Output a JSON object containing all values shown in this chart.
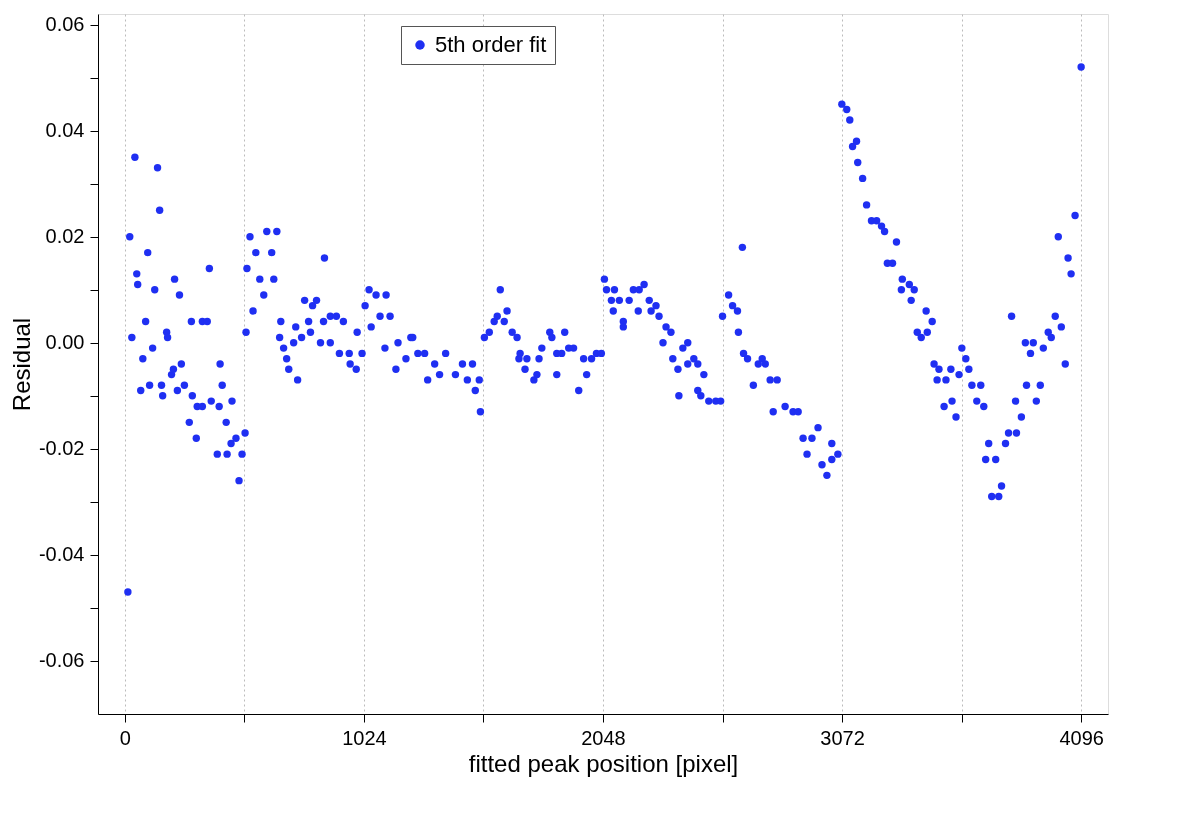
{
  "chart_data": {
    "type": "scatter",
    "xlabel": "fitted peak position [pixel]",
    "ylabel": "Residual",
    "xlim": [
      -115,
      4211
    ],
    "ylim": [
      -0.07,
      0.062
    ],
    "xticks": [
      0,
      {
        "value": 512,
        "label": null
      },
      1024,
      {
        "value": 1536,
        "label": null
      },
      2048,
      {
        "value": 2560,
        "label": null
      },
      3072,
      {
        "value": 3584,
        "label": null
      },
      4096
    ],
    "yticks": [
      -0.06,
      {
        "value": -0.05,
        "label": null
      },
      -0.04,
      {
        "value": -0.03,
        "label": null
      },
      -0.02,
      {
        "value": -0.01,
        "label": null
      },
      {
        "value": 0,
        "label": "0.00"
      },
      {
        "value": 0.01,
        "label": null
      },
      0.02,
      {
        "value": 0.03,
        "label": null
      },
      0.04,
      {
        "value": 0.05,
        "label": null
      },
      0.06
    ],
    "grid": "x",
    "legend": "top",
    "marker": "circle",
    "series": [
      {
        "name": "5th order fit",
        "color": "#1f2ff2",
        "x": [
          13,
          21,
          30,
          43,
          51,
          55,
          68,
          77,
          89,
          98,
          106,
          119,
          128,
          140,
          149,
          157,
          162,
          179,
          183,
          200,
          208,
          213,
          225,
          234,
          242,
          255,
          276,
          285,
          289,
          306,
          310,
          332,
          332,
          353,
          362,
          370,
          396,
          404,
          408,
          417,
          434,
          438,
          455,
          459,
          476,
          489,
          502,
          515,
          519,
          523,
          536,
          549,
          561,
          578,
          595,
          608,
          629,
          638,
          651,
          663,
          668,
          680,
          693,
          702,
          723,
          732,
          740,
          757,
          770,
          787,
          795,
          804,
          821,
          838,
          851,
          855,
          880,
          880,
          906,
          919,
          936,
          961,
          965,
          991,
          995,
          1016,
          1029,
          1046,
          1055,
          1076,
          1093,
          1114,
          1119,
          1136,
          1161,
          1170,
          1204,
          1225,
          1233,
          1255,
          1284,
          1297,
          1327,
          1348,
          1374,
          1416,
          1446,
          1467,
          1489,
          1501,
          1518,
          1523,
          1540,
          1561,
          1582,
          1595,
          1608,
          1625,
          1637,
          1659,
          1680,
          1688,
          1693,
          1714,
          1722,
          1752,
          1765,
          1774,
          1786,
          1820,
          1829,
          1850,
          1850,
          1871,
          1884,
          1901,
          1922,
          1944,
          1965,
          1978,
          1999,
          2020,
          2041,
          2054,
          2063,
          2084,
          2092,
          2097,
          2118,
          2135,
          2135,
          2160,
          2178,
          2199,
          2203,
          2224,
          2246,
          2254,
          2275,
          2288,
          2305,
          2318,
          2339,
          2347,
          2369,
          2373,
          2390,
          2411,
          2411,
          2437,
          2454,
          2454,
          2467,
          2480,
          2501,
          2531,
          2552,
          2560,
          2586,
          2603,
          2624,
          2628,
          2645,
          2650,
          2667,
          2692,
          2713,
          2730,
          2743,
          2764,
          2777,
          2794,
          2828,
          2862,
          2884,
          2905,
          2922,
          2943,
          2969,
          2986,
          3007,
          3028,
          3028,
          3054,
          3071,
          3092,
          3105,
          3117,
          3134,
          3139,
          3160,
          3177,
          3198,
          3220,
          3241,
          3254,
          3266,
          3288,
          3305,
          3326,
          3330,
          3360,
          3368,
          3381,
          3394,
          3411,
          3432,
          3437,
          3458,
          3466,
          3479,
          3487,
          3509,
          3517,
          3538,
          3543,
          3560,
          3573,
          3585,
          3602,
          3615,
          3628,
          3649,
          3666,
          3679,
          3687,
          3700,
          3713,
          3730,
          3743,
          3755,
          3772,
          3785,
          3798,
          3815,
          3819,
          3840,
          3857,
          3862,
          3879,
          3891,
          3904,
          3921,
          3934,
          3955,
          3968,
          3985,
          3998,
          4011,
          4028,
          4040,
          4053,
          4070,
          4096
        ],
        "values": [
          -0.047,
          0.02,
          0.001,
          0.035,
          0.013,
          0.011,
          -0.009,
          -0.003,
          0.004,
          0.017,
          -0.008,
          -0.001,
          0.01,
          0.033,
          0.025,
          -0.008,
          -0.01,
          0.002,
          0.001,
          -0.006,
          -0.005,
          0.012,
          -0.009,
          0.009,
          -0.004,
          -0.008,
          -0.015,
          0.004,
          -0.01,
          -0.018,
          -0.012,
          -0.012,
          0.004,
          0.004,
          0.014,
          -0.011,
          -0.021,
          -0.012,
          -0.004,
          -0.008,
          -0.015,
          -0.021,
          -0.019,
          -0.011,
          -0.018,
          -0.026,
          -0.021,
          -0.017,
          0.002,
          0.014,
          0.02,
          0.006,
          0.017,
          0.012,
          0.009,
          0.021,
          0.017,
          0.012,
          0.021,
          0.001,
          0.004,
          -0.001,
          -0.003,
          -0.005,
          0.0,
          0.003,
          -0.007,
          0.001,
          0.008,
          0.004,
          0.002,
          0.007,
          0.008,
          0.0,
          0.004,
          0.016,
          0.005,
          0.0,
          0.005,
          -0.002,
          0.004,
          -0.002,
          -0.004,
          -0.005,
          0.002,
          -0.002,
          0.007,
          0.01,
          0.003,
          0.009,
          0.005,
          -0.001,
          0.009,
          0.005,
          -0.005,
          0.0,
          -0.003,
          0.001,
          0.001,
          -0.002,
          -0.002,
          -0.007,
          -0.004,
          -0.006,
          -0.002,
          -0.006,
          -0.004,
          -0.007,
          -0.004,
          -0.009,
          -0.007,
          -0.013,
          0.001,
          0.002,
          0.004,
          0.005,
          0.01,
          0.004,
          0.006,
          0.002,
          0.001,
          -0.003,
          -0.002,
          -0.005,
          -0.003,
          -0.007,
          -0.006,
          -0.003,
          -0.001,
          0.002,
          0.001,
          -0.002,
          -0.006,
          -0.002,
          0.002,
          -0.001,
          -0.001,
          -0.009,
          -0.003,
          -0.006,
          -0.003,
          -0.002,
          -0.002,
          0.012,
          0.01,
          0.008,
          0.006,
          0.01,
          0.008,
          0.004,
          0.003,
          0.008,
          0.01,
          0.006,
          0.01,
          0.011,
          0.008,
          0.006,
          0.007,
          0.005,
          0.0,
          0.003,
          0.002,
          -0.003,
          -0.005,
          -0.01,
          -0.001,
          0.0,
          -0.004,
          -0.003,
          -0.004,
          -0.009,
          -0.01,
          -0.006,
          -0.011,
          -0.011,
          -0.011,
          0.005,
          0.009,
          0.007,
          0.006,
          0.002,
          0.018,
          -0.002,
          -0.003,
          -0.008,
          -0.004,
          -0.003,
          -0.004,
          -0.007,
          -0.013,
          -0.007,
          -0.012,
          -0.013,
          -0.013,
          -0.018,
          -0.021,
          -0.018,
          -0.016,
          -0.023,
          -0.025,
          -0.019,
          -0.022,
          -0.021,
          0.045,
          0.044,
          0.042,
          0.037,
          0.038,
          0.034,
          0.031,
          0.026,
          0.023,
          0.023,
          0.022,
          0.021,
          0.015,
          0.015,
          0.019,
          0.01,
          0.012,
          0.011,
          0.008,
          0.01,
          0.002,
          0.001,
          0.006,
          0.002,
          0.004,
          -0.004,
          -0.007,
          -0.005,
          -0.012,
          -0.007,
          -0.005,
          -0.011,
          -0.014,
          -0.006,
          -0.001,
          -0.003,
          -0.005,
          -0.008,
          -0.011,
          -0.008,
          -0.012,
          -0.022,
          -0.019,
          -0.029,
          -0.022,
          -0.029,
          -0.027,
          -0.019,
          -0.017,
          0.005,
          -0.011,
          -0.017,
          -0.014,
          0.0,
          -0.008,
          -0.002,
          0.0,
          -0.011,
          -0.008,
          -0.001,
          0.002,
          0.001,
          0.005,
          0.02,
          0.003,
          -0.004,
          0.016,
          0.013,
          0.024,
          0.052
        ]
      }
    ]
  }
}
